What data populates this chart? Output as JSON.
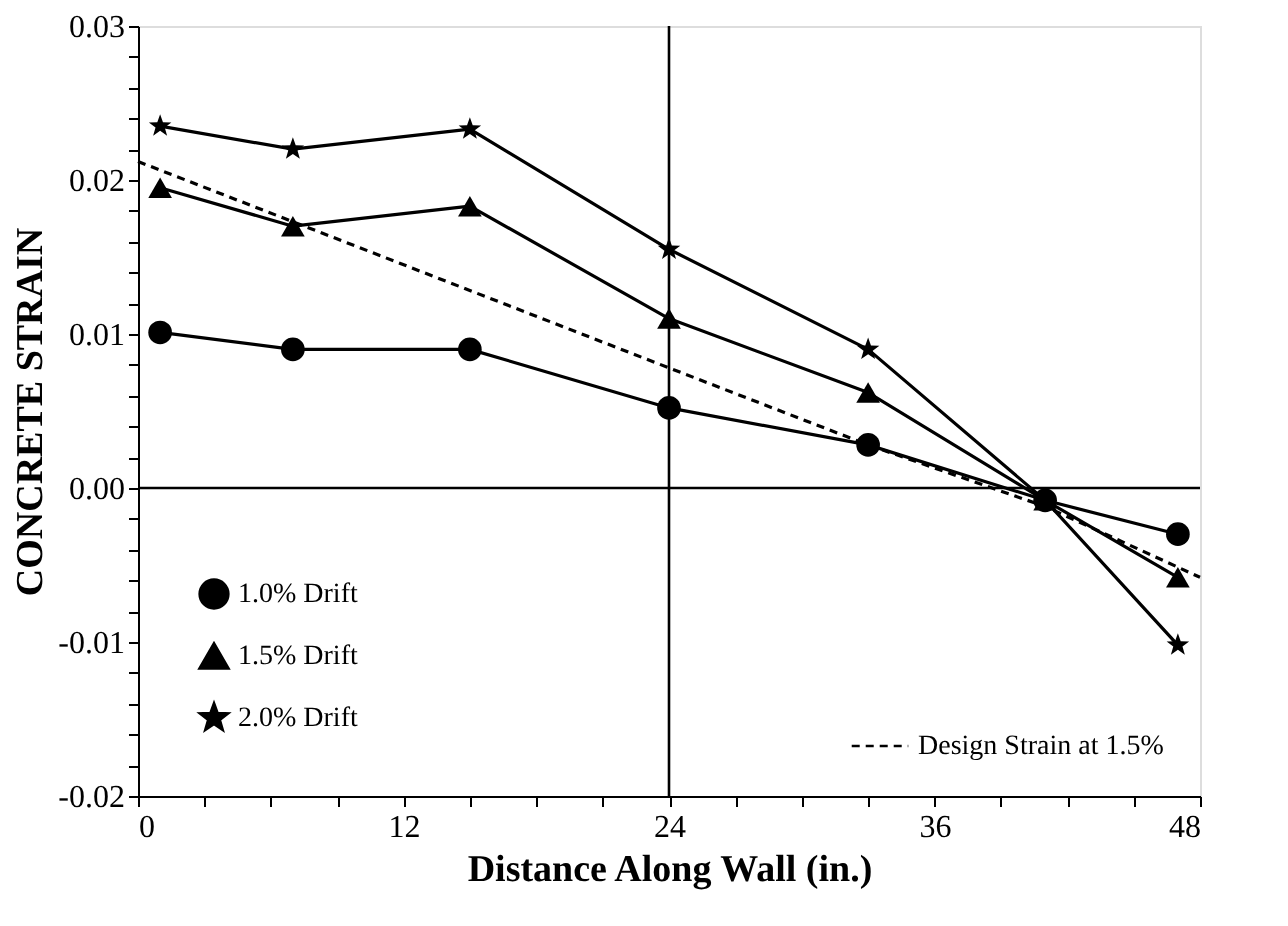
{
  "chart_data": {
    "type": "line",
    "xlabel": "Distance Along Wall (in.)",
    "ylabel": "CONCRETE STRAIN",
    "xlim": [
      0,
      48
    ],
    "ylim": [
      -0.02,
      0.03
    ],
    "xticks": [
      0,
      {
        "value": 3,
        "label": null
      },
      {
        "value": 6,
        "label": null
      },
      {
        "value": 9,
        "label": null
      },
      12,
      {
        "value": 15,
        "label": null
      },
      {
        "value": 18,
        "label": null
      },
      {
        "value": 21,
        "label": null
      },
      24,
      {
        "value": 27,
        "label": null
      },
      {
        "value": 30,
        "label": null
      },
      {
        "value": 33,
        "label": null
      },
      36,
      {
        "value": 39,
        "label": null
      },
      {
        "value": 42,
        "label": null
      },
      {
        "value": 45,
        "label": null
      },
      48
    ],
    "yticks": [
      {
        "value": -0.02,
        "label": "-0.02"
      },
      {
        "value": -0.018,
        "label": null
      },
      {
        "value": -0.016,
        "label": null
      },
      {
        "value": -0.014,
        "label": null
      },
      {
        "value": -0.012,
        "label": null
      },
      {
        "value": -0.01,
        "label": "-0.01"
      },
      {
        "value": -0.008,
        "label": null
      },
      {
        "value": -0.006,
        "label": null
      },
      {
        "value": -0.004,
        "label": null
      },
      {
        "value": -0.002,
        "label": null
      },
      {
        "value": 0,
        "label": "0.00"
      },
      {
        "value": 0.002,
        "label": null
      },
      {
        "value": 0.004,
        "label": null
      },
      {
        "value": 0.006,
        "label": null
      },
      {
        "value": 0.008,
        "label": null
      },
      {
        "value": 0.01,
        "label": "0.01"
      },
      {
        "value": 0.012,
        "label": null
      },
      {
        "value": 0.014,
        "label": null
      },
      {
        "value": 0.016,
        "label": null
      },
      {
        "value": 0.018,
        "label": null
      },
      {
        "value": 0.02,
        "label": "0.02"
      },
      {
        "value": 0.022,
        "label": null
      },
      {
        "value": 0.024,
        "label": null
      },
      {
        "value": 0.026,
        "label": null
      },
      {
        "value": 0.028,
        "label": null
      },
      {
        "value": 0.03,
        "label": "0.03"
      }
    ],
    "grid": false,
    "legend": "bottom left",
    "ref_lines": [
      {
        "axis": "x",
        "value": 24,
        "color": "#000000"
      },
      {
        "axis": "y",
        "value": 0,
        "color": "#000000"
      }
    ],
    "series": [
      {
        "name": "1.0% Drift",
        "color": "#000000",
        "marker": "circle",
        "line_style": "solid",
        "x": [
          1,
          7,
          15,
          24,
          33,
          41,
          47
        ],
        "values": [
          0.0101,
          0.009,
          0.009,
          0.0052,
          0.0028,
          -0.0008,
          -0.003
        ]
      },
      {
        "name": "1.5% Drift",
        "color": "#000000",
        "marker": "triangle",
        "line_style": "solid",
        "x": [
          1,
          7,
          15,
          24,
          33,
          41,
          47
        ],
        "values": [
          0.0195,
          0.017,
          0.0183,
          0.011,
          0.0062,
          -0.0008,
          -0.0058
        ]
      },
      {
        "name": "2.0% Drift",
        "color": "#000000",
        "marker": "star",
        "line_style": "solid",
        "x": [
          1,
          7,
          15,
          24,
          33,
          41,
          47
        ],
        "values": [
          0.0235,
          0.022,
          0.0233,
          0.0155,
          0.009,
          -0.0008,
          -0.0102
        ]
      },
      {
        "name": "Design Strain at 1.5%",
        "color": "#000000",
        "marker": "none",
        "line_style": "dashed",
        "x": [
          0,
          24,
          33,
          41,
          48
        ],
        "values": [
          0.0212,
          0.0078,
          0.0028,
          -0.0012,
          -0.0058
        ]
      }
    ]
  }
}
